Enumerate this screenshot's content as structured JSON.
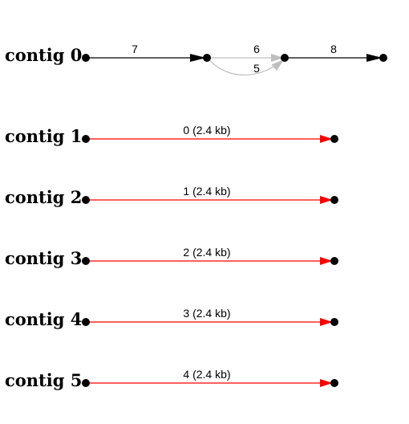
{
  "contig_0": {
    "label": "contig 0",
    "edge_7_label": "7",
    "edge_6_label": "6",
    "edge_5_label": "5",
    "edge_8_label": "8",
    "edge_color": "#000000",
    "bubble_color": "#bebebe"
  },
  "contigs": [
    {
      "label": "contig 1",
      "edge_label": "0 (2.4 kb)"
    },
    {
      "label": "contig 2",
      "edge_label": "1 (2.4 kb)"
    },
    {
      "label": "contig 3",
      "edge_label": "2 (2.4 kb)"
    },
    {
      "label": "contig 4",
      "edge_label": "3 (2.4 kb)"
    },
    {
      "label": "contig 5",
      "edge_label": "4 (2.4 kb)"
    }
  ],
  "colors": {
    "single_edge": "#ff0000",
    "node": "#000000"
  }
}
